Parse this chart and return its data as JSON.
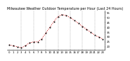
{
  "title": "Milwaukee Weather Outdoor Temperature per Hour (Last 24 Hours)",
  "hours": [
    0,
    1,
    2,
    3,
    4,
    5,
    6,
    7,
    8,
    9,
    10,
    11,
    12,
    13,
    14,
    15,
    16,
    17,
    18,
    19,
    20,
    21,
    22,
    23
  ],
  "temps": [
    22,
    21,
    20,
    19,
    21,
    24,
    25,
    25,
    28,
    34,
    40,
    46,
    51,
    53,
    52,
    50,
    47,
    44,
    41,
    38,
    35,
    32,
    30,
    28
  ],
  "line_color": "#cc0000",
  "marker_color": "#000000",
  "bg_color": "#ffffff",
  "grid_color": "#888888",
  "text_color": "#000000",
  "ylim": [
    17,
    57
  ],
  "yticks": [
    20,
    25,
    30,
    35,
    40,
    45,
    50,
    55
  ],
  "xtick_positions": [
    0,
    1,
    2,
    3,
    4,
    5,
    6,
    7,
    8,
    9,
    10,
    11,
    12,
    13,
    14,
    15,
    16,
    17,
    18,
    19,
    20,
    21,
    22,
    23
  ],
  "grid_positions": [
    3,
    6,
    9,
    12,
    15,
    18,
    21
  ],
  "title_fontsize": 3.5,
  "tick_fontsize": 2.8
}
